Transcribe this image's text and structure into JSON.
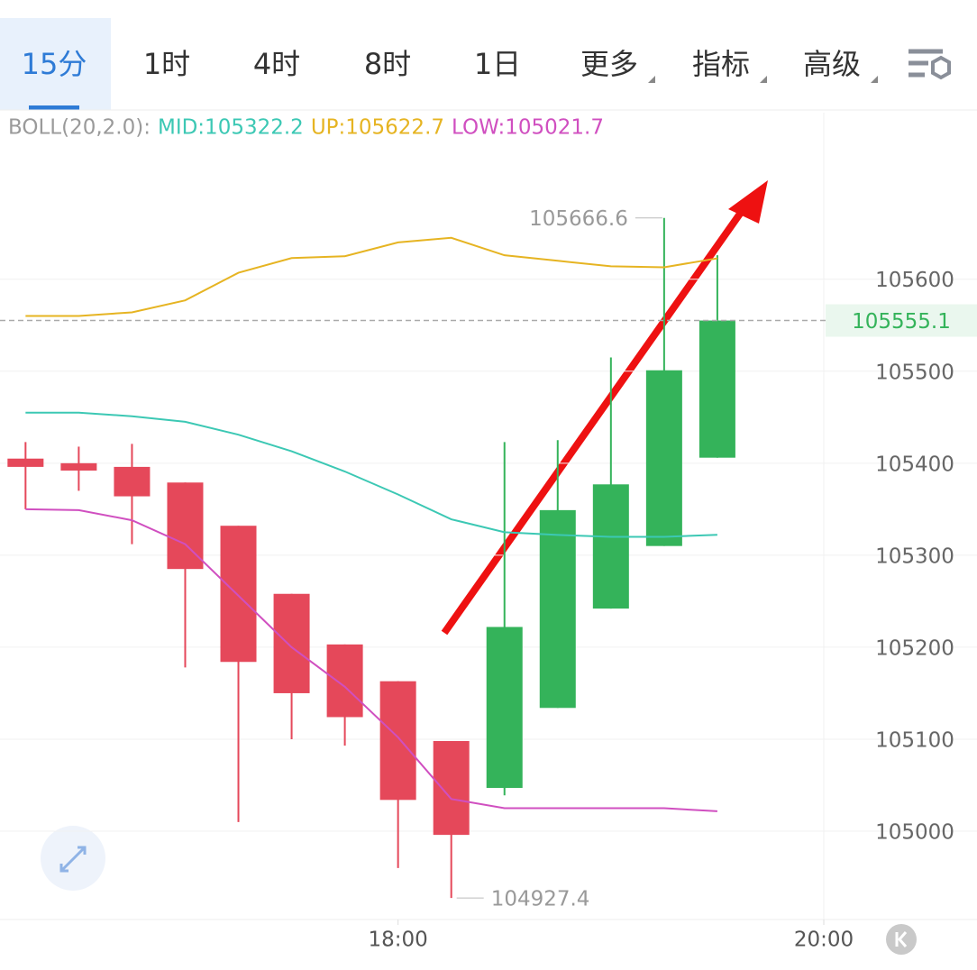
{
  "tabs": [
    "15分",
    "1时",
    "4时",
    "8时",
    "1日",
    "更多",
    "指标",
    "高级"
  ],
  "active_tab": "15分",
  "chart_data": {
    "type": "candlestick",
    "legend_labels": [
      "BOLL(20,2.0):",
      "MID:105322.2",
      "UP:105622.7",
      "LOW:105021.7"
    ],
    "legend_colors": [
      "#9a9a9a",
      "#3cc8b4",
      "#e6b422",
      "#d04fc0"
    ],
    "x": [
      16.25,
      16.5,
      16.75,
      17.0,
      17.25,
      17.5,
      17.75,
      18.0,
      18.25,
      18.5,
      18.75,
      19.0,
      19.25,
      19.5
    ],
    "open": [
      105405,
      105400,
      105396,
      105379,
      105332,
      105258,
      105203,
      105163,
      105098,
      105047,
      105134,
      105242,
      105310,
      105406
    ],
    "high": [
      105423,
      105418,
      105421,
      105379,
      105332,
      105258,
      105203,
      105163,
      105098,
      105423,
      105425,
      105515,
      105666.6,
      105626
    ],
    "low": [
      105350,
      105370,
      105312,
      105178,
      105010,
      105100,
      105093,
      104960,
      104927.4,
      105039,
      105134,
      105242,
      105310,
      105406
    ],
    "close": [
      105396,
      105392,
      105364,
      105285,
      105184,
      105150,
      105124,
      105034,
      104996,
      105222,
      105349,
      105377,
      105501,
      105555.1
    ],
    "up_color": "#34b35a",
    "down_color": "#e5485a",
    "overlays": [
      {
        "color": "#e6b422",
        "values": [
          105560,
          105560,
          105564,
          105577,
          105607,
          105623,
          105625,
          105640,
          105645,
          105626,
          105620,
          105614,
          105613,
          105622.7
        ]
      },
      {
        "color": "#3cc8b4",
        "values": [
          105455,
          105455,
          105451,
          105445,
          105431,
          105413,
          105391,
          105366,
          105339,
          105325,
          105322,
          105320,
          105320,
          105322.2
        ]
      },
      {
        "color": "#d04fc0",
        "values": [
          105350,
          105349,
          105338,
          105312,
          105256,
          105200,
          105157,
          105102,
          105035,
          105025,
          105025,
          105025,
          105025,
          105021.7
        ]
      }
    ],
    "xlim": [
      16.13,
      20
    ],
    "ylim": [
      104904,
      105781
    ],
    "xticks": [
      {
        "value": 18,
        "label": "18:00"
      },
      {
        "value": 20,
        "label": "20:00"
      }
    ],
    "yticks": [
      105000,
      105100,
      105200,
      105300,
      105400,
      105500,
      105600
    ],
    "grid": true
  }
}
